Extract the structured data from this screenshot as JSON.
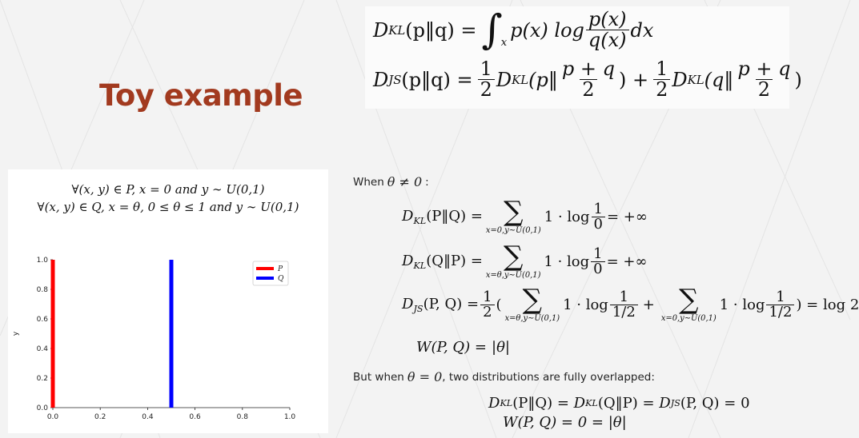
{
  "title": "Toy example",
  "header_formulas": {
    "kl": {
      "lhs": "D",
      "lhs_sub": "KL",
      "args": "(p‖q) =",
      "integral_limit": "x",
      "before_frac": "p(x) log",
      "frac_num": "p(x)",
      "frac_den": "q(x)",
      "after": "dx"
    },
    "js": {
      "lhs": "D",
      "lhs_sub": "JS",
      "args": "(p‖q) =",
      "half_num": "1",
      "half_den": "2",
      "term1_pre": "D",
      "term1_sub": "KL",
      "term1_arg": "(p‖",
      "mix_num": "p + q",
      "mix_den": "2",
      "term1_close": ") +",
      "term2_pre": "D",
      "term2_sub": "KL",
      "term2_arg": "(q‖",
      "term2_close": ")"
    }
  },
  "definitions": {
    "line1": "∀(x, y) ∈ P, x = 0 and y ∼ U(0,1)",
    "line2": "∀(x, y) ∈ Q, x = θ, 0 ≤ θ ≤ 1 and y ∼ U(0,1)"
  },
  "chart_data": {
    "type": "line",
    "series": [
      {
        "name": "P",
        "color": "#ff0000",
        "x": [
          0.0,
          0.0
        ],
        "y": [
          0.0,
          1.0
        ]
      },
      {
        "name": "Q",
        "color": "#0000ff",
        "x": [
          0.5,
          0.5
        ],
        "y": [
          0.0,
          1.0
        ]
      }
    ],
    "xlim": [
      0.0,
      1.0
    ],
    "ylim": [
      0.0,
      1.0
    ],
    "xticks": [
      "0.0",
      "0.2",
      "0.4",
      "0.6",
      "0.8",
      "1.0"
    ],
    "yticks": [
      "0.0",
      "0.2",
      "0.4",
      "0.6",
      "0.8",
      "1.0"
    ],
    "xlabel": "",
    "ylabel": "y",
    "legend": "top-right",
    "grid": false
  },
  "case1": {
    "intro_pre": "When",
    "intro_math": "θ ≠ 0",
    "intro_post": ":",
    "eq1": {
      "lhs": "D",
      "lhs_sub": "KL",
      "lhs_args": "(P‖Q) =",
      "sum_sub": "x=0,y∼U(0,1)",
      "term": "1 · log",
      "frac_num": "1",
      "frac_den": "0",
      "result": "= +∞"
    },
    "eq2": {
      "lhs": "D",
      "lhs_sub": "KL",
      "lhs_args": "(Q‖P) =",
      "sum_sub": "x=θ,y∼U(0,1)",
      "term": "1 · log",
      "frac_num": "1",
      "frac_den": "0",
      "result": "= +∞"
    },
    "eq3": {
      "lhs": "D",
      "lhs_sub": "JS",
      "lhs_args": "(P, Q) =",
      "half_num": "1",
      "half_den": "2",
      "open": "(",
      "sum1_sub": "x=θ,y∼U(0,1)",
      "term1": "1 · log",
      "f1_num": "1",
      "f1_den": "1/2",
      "plus": "+",
      "sum2_sub": "x=0,y∼U(0,1)",
      "term2": "1 · log",
      "f2_num": "1",
      "f2_den": "1/2",
      "result": ") = log 2"
    },
    "eq4": {
      "lhs": "W(P, Q) =",
      "rhs": "|θ|"
    }
  },
  "case2": {
    "intro_pre": "But when",
    "intro_math": "θ = 0",
    "intro_post": ", two distributions are fully overlapped:",
    "line1": "D_KL(P‖Q) = D_KL(Q‖P) = D_JS(P, Q) = 0",
    "line1_parts": {
      "a": "D",
      "a_sub": "KL",
      "a_arg": "(P‖Q) = ",
      "b": "D",
      "b_sub": "KL",
      "b_arg": "(Q‖P) = ",
      "c": "D",
      "c_sub": "JS",
      "c_arg": "(P, Q) = 0"
    },
    "line2": "W(P, Q) = 0 = |θ|"
  }
}
